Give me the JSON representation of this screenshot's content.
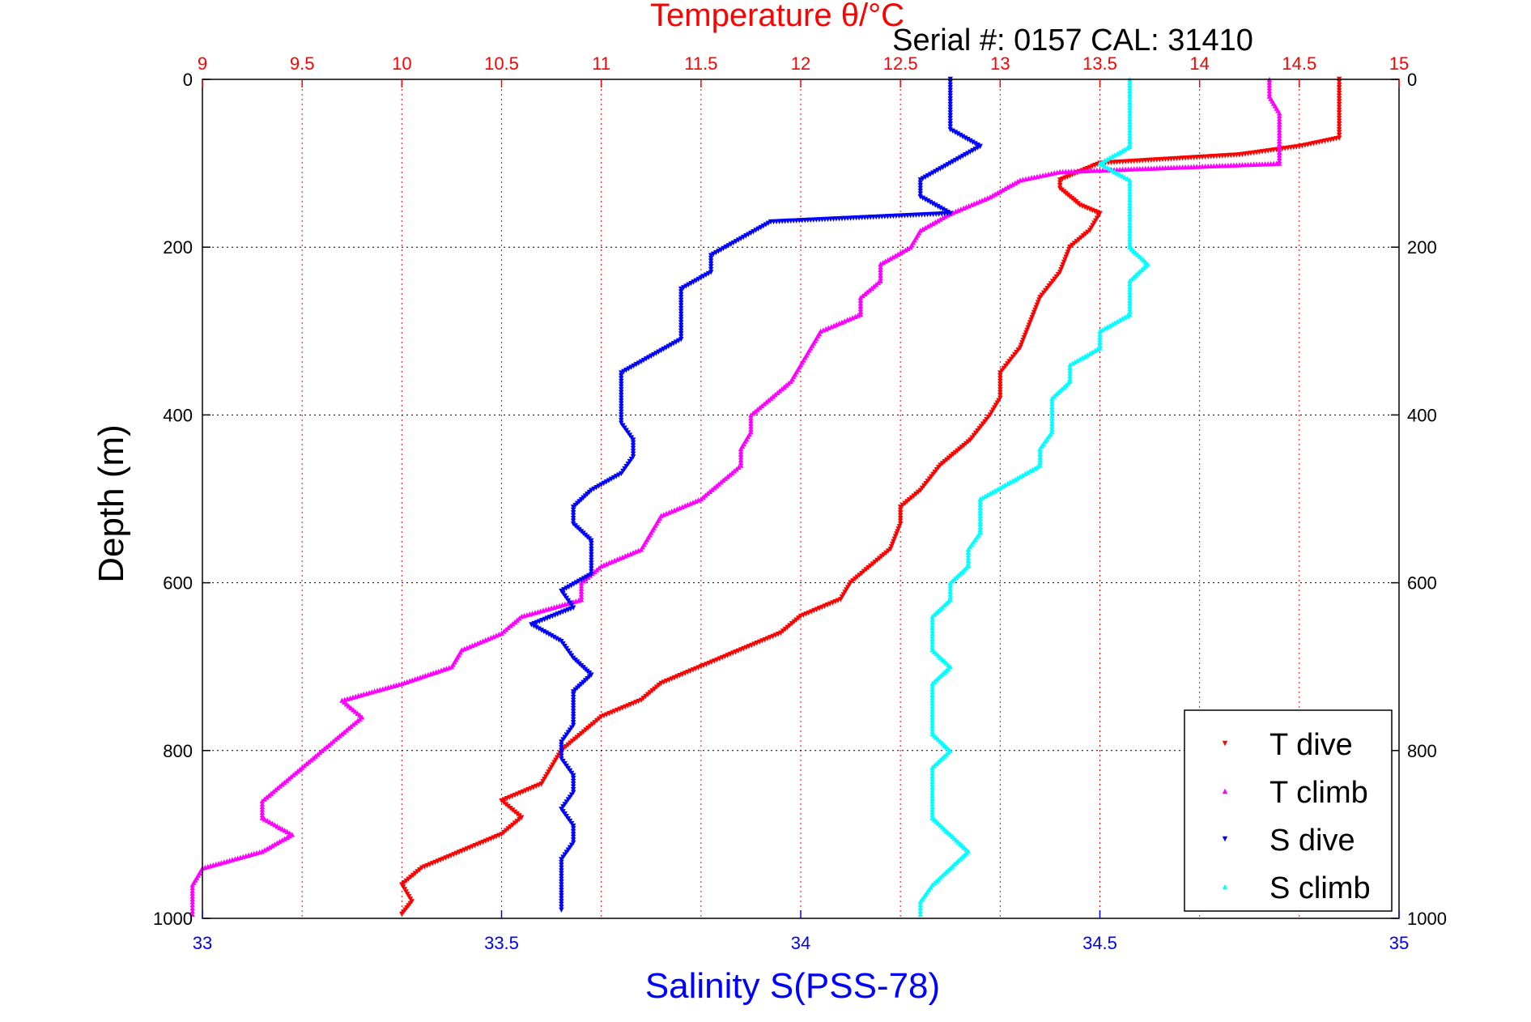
{
  "colors": {
    "temperature_axis": "#ff0000",
    "salinity_axis": "#0000ff",
    "t_dive": "#ff0000",
    "t_climb": "#ff00ff",
    "s_dive": "#0000ff",
    "s_climb": "#00ffff"
  },
  "chart_data": {
    "type": "scatter",
    "title": "Temperature θ/°C",
    "subtitle": "Serial #: 0157  CAL: 31410",
    "xlabel": "Salinity S(PSS-78)",
    "x2label": "Temperature θ/°C",
    "ylabel": "Depth (m)",
    "ylim": [
      1000,
      0
    ],
    "y_reversed": true,
    "xlim_salinity": [
      33,
      35
    ],
    "xlim_temperature": [
      9,
      15
    ],
    "salinity_ticks": [
      "33",
      "33.5",
      "34",
      "34.5",
      "35"
    ],
    "temperature_ticks": [
      "9",
      "9.5",
      "10",
      "10.5",
      "11",
      "11.5",
      "12",
      "12.5",
      "13",
      "13.5",
      "14",
      "14.5",
      "15"
    ],
    "depth_ticks": [
      "0",
      "200",
      "400",
      "600",
      "800",
      "1000"
    ],
    "grid": true,
    "legend_position": "bottom-right",
    "series": [
      {
        "name": "T dive",
        "axis": "temperature",
        "marker": "triangle-down",
        "depth": [
          0,
          10,
          30,
          50,
          70,
          80,
          90,
          100,
          110,
          120,
          130,
          140,
          150,
          160,
          180,
          200,
          230,
          260,
          290,
          320,
          350,
          380,
          400,
          430,
          460,
          490,
          510,
          530,
          560,
          580,
          600,
          620,
          640,
          660,
          680,
          700,
          720,
          740,
          760,
          780,
          800,
          820,
          840,
          860,
          880,
          900,
          920,
          940,
          960,
          980,
          995
        ],
        "values": [
          14.7,
          14.7,
          14.7,
          14.7,
          14.7,
          14.5,
          14.2,
          13.5,
          13.4,
          13.3,
          13.3,
          13.35,
          13.4,
          13.5,
          13.45,
          13.35,
          13.3,
          13.2,
          13.15,
          13.1,
          13.0,
          13.0,
          12.95,
          12.85,
          12.7,
          12.6,
          12.5,
          12.5,
          12.45,
          12.35,
          12.25,
          12.2,
          12.0,
          11.9,
          11.7,
          11.5,
          11.3,
          11.2,
          11.0,
          10.9,
          10.8,
          10.75,
          10.7,
          10.5,
          10.6,
          10.5,
          10.3,
          10.1,
          10.0,
          10.05,
          10.0
        ]
      },
      {
        "name": "T climb",
        "axis": "temperature",
        "marker": "triangle-up",
        "depth": [
          0,
          20,
          40,
          60,
          80,
          100,
          110,
          120,
          140,
          160,
          180,
          200,
          220,
          240,
          260,
          280,
          300,
          320,
          340,
          360,
          380,
          400,
          420,
          440,
          460,
          480,
          500,
          520,
          540,
          560,
          580,
          600,
          620,
          640,
          660,
          680,
          700,
          720,
          740,
          760,
          780,
          800,
          820,
          840,
          860,
          880,
          900,
          920,
          940,
          960,
          980,
          995
        ],
        "values": [
          14.35,
          14.35,
          14.4,
          14.4,
          14.4,
          14.4,
          13.3,
          13.1,
          12.95,
          12.75,
          12.6,
          12.55,
          12.4,
          12.4,
          12.3,
          12.3,
          12.1,
          12.05,
          12.0,
          11.95,
          11.85,
          11.75,
          11.75,
          11.7,
          11.7,
          11.6,
          11.5,
          11.3,
          11.25,
          11.2,
          11.0,
          10.9,
          10.9,
          10.6,
          10.5,
          10.3,
          10.25,
          10.0,
          9.7,
          9.8,
          9.7,
          9.6,
          9.5,
          9.4,
          9.3,
          9.3,
          9.45,
          9.3,
          9.0,
          8.95,
          8.95,
          8.95
        ]
      },
      {
        "name": "S dive",
        "axis": "salinity",
        "marker": "triangle-down",
        "depth": [
          0,
          20,
          40,
          60,
          80,
          100,
          120,
          140,
          160,
          170,
          190,
          210,
          230,
          250,
          270,
          290,
          310,
          330,
          350,
          370,
          390,
          410,
          430,
          450,
          470,
          490,
          510,
          530,
          550,
          570,
          590,
          610,
          630,
          650,
          670,
          690,
          710,
          730,
          750,
          770,
          790,
          810,
          830,
          850,
          870,
          890,
          910,
          930,
          950,
          970,
          990
        ],
        "values": [
          34.25,
          34.25,
          34.25,
          34.25,
          34.3,
          34.25,
          34.2,
          34.2,
          34.25,
          33.95,
          33.9,
          33.85,
          33.85,
          33.8,
          33.8,
          33.8,
          33.8,
          33.75,
          33.7,
          33.7,
          33.7,
          33.7,
          33.72,
          33.72,
          33.7,
          33.65,
          33.62,
          33.62,
          33.65,
          33.65,
          33.65,
          33.6,
          33.62,
          33.55,
          33.6,
          33.62,
          33.65,
          33.62,
          33.62,
          33.62,
          33.6,
          33.6,
          33.62,
          33.62,
          33.6,
          33.62,
          33.62,
          33.6,
          33.6,
          33.6,
          33.6
        ]
      },
      {
        "name": "S climb",
        "axis": "salinity",
        "marker": "triangle-up",
        "depth": [
          0,
          20,
          40,
          60,
          80,
          100,
          120,
          140,
          160,
          180,
          200,
          220,
          240,
          260,
          280,
          300,
          320,
          340,
          360,
          380,
          400,
          420,
          440,
          460,
          480,
          500,
          520,
          540,
          560,
          580,
          600,
          620,
          640,
          660,
          680,
          700,
          720,
          740,
          760,
          780,
          800,
          820,
          840,
          860,
          880,
          900,
          920,
          940,
          960,
          980,
          995
        ],
        "values": [
          34.55,
          34.55,
          34.55,
          34.55,
          34.55,
          34.5,
          34.55,
          34.55,
          34.55,
          34.55,
          34.55,
          34.58,
          34.55,
          34.55,
          34.55,
          34.5,
          34.5,
          34.45,
          34.45,
          34.42,
          34.42,
          34.42,
          34.4,
          34.4,
          34.35,
          34.3,
          34.3,
          34.3,
          34.28,
          34.28,
          34.25,
          34.25,
          34.22,
          34.22,
          34.22,
          34.25,
          34.22,
          34.22,
          34.22,
          34.22,
          34.25,
          34.22,
          34.22,
          34.22,
          34.22,
          34.25,
          34.28,
          34.25,
          34.22,
          34.2,
          34.2
        ]
      }
    ]
  }
}
